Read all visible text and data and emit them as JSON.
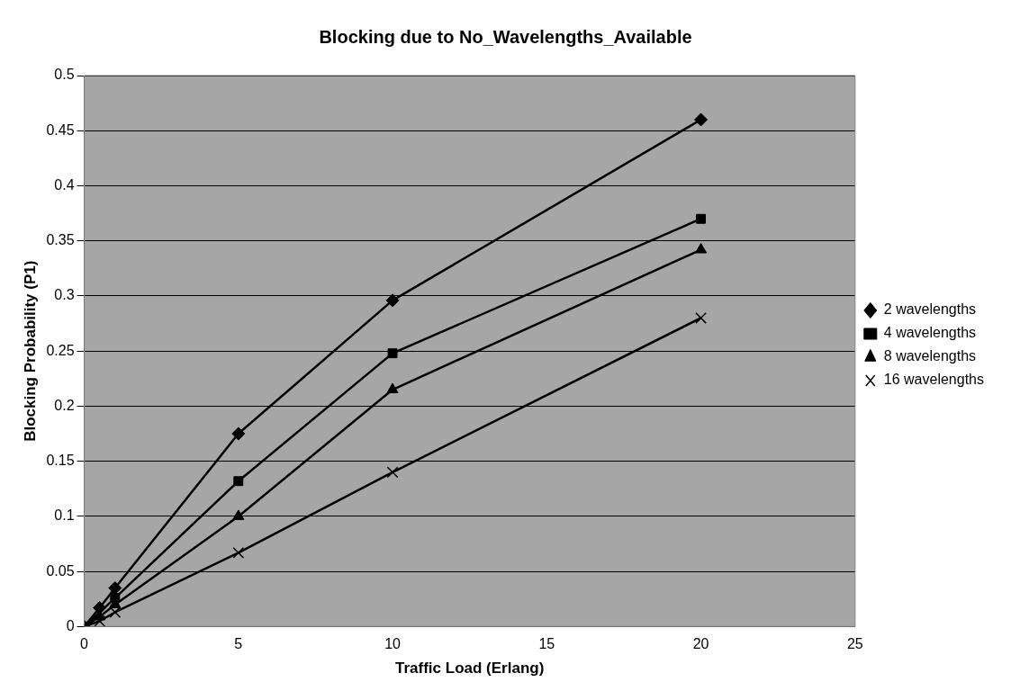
{
  "chart_data": {
    "type": "line",
    "title": "Blocking due to No_Wavelengths_Available",
    "xlabel": "Traffic Load (Erlang)",
    "ylabel": "Blocking Probability (P1)",
    "x": [
      0,
      0.5,
      1,
      5,
      10,
      20
    ],
    "series": [
      {
        "name": "2 wavelengths",
        "color": "#000000",
        "marker": "diamond",
        "values": [
          0,
          0.017,
          0.035,
          0.175,
          0.296,
          0.46
        ]
      },
      {
        "name": "4 wavelengths",
        "color": "#000000",
        "marker": "square",
        "values": [
          0,
          null,
          0.026,
          0.132,
          0.248,
          0.37
        ]
      },
      {
        "name": "8 wavelengths",
        "color": "#000000",
        "marker": "triangle",
        "values": [
          0,
          0.009,
          0.02,
          0.1,
          0.215,
          0.342
        ]
      },
      {
        "name": "16 wavelengths",
        "color": "#000000",
        "marker": "cross",
        "values": [
          0,
          0.005,
          0.013,
          0.067,
          0.14,
          0.28
        ]
      }
    ],
    "xlim": [
      0,
      25
    ],
    "xticks": [
      0,
      5,
      10,
      15,
      20,
      25
    ],
    "ylim": [
      0,
      0.5
    ],
    "yticks": [
      0,
      0.05,
      0.1,
      0.15,
      0.2,
      0.25,
      0.3,
      0.35,
      0.4,
      0.45,
      0.5
    ],
    "grid": "y",
    "legend": "right",
    "line_style": "solid"
  }
}
